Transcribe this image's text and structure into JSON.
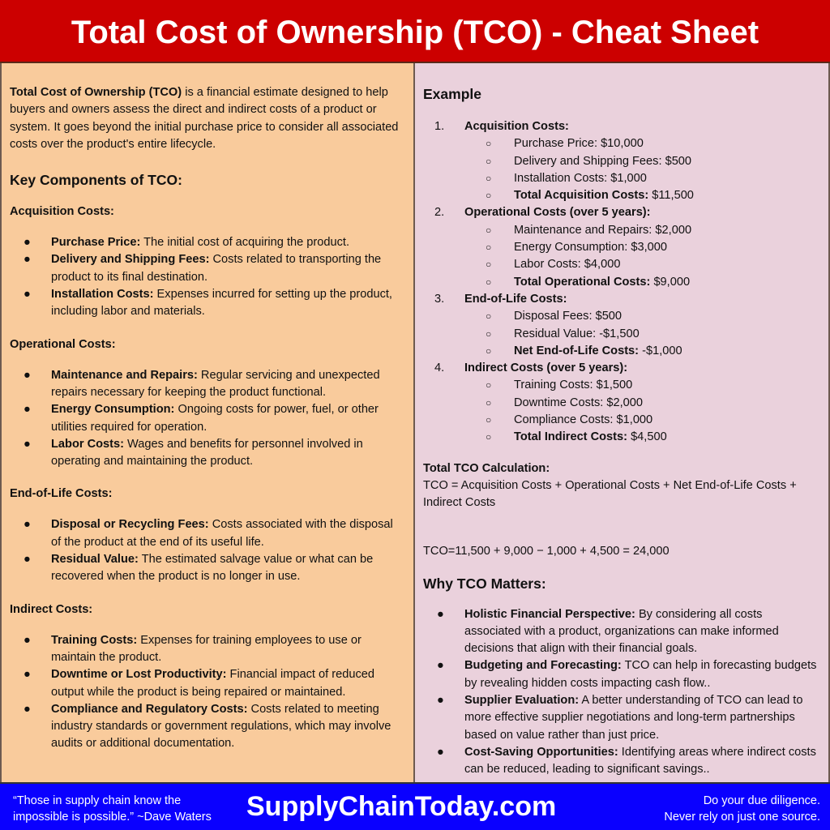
{
  "title": "Total Cost of Ownership (TCO) - Cheat Sheet",
  "left": {
    "intro_bold": "Total Cost of Ownership (TCO)",
    "intro_rest": " is a financial estimate designed to help buyers and owners assess the direct and indirect costs of a product or system. It goes beyond the initial purchase price to consider all associated costs over the product's entire lifecycle.",
    "heading": "Key Components of TCO:",
    "sections": [
      {
        "title": "Acquisition Costs:",
        "items": [
          {
            "term": "Purchase Price:",
            "desc": " The initial cost of acquiring the product."
          },
          {
            "term": "Delivery and Shipping Fees:",
            "desc": " Costs related to transporting the product to its final destination."
          },
          {
            "term": "Installation Costs:",
            "desc": " Expenses incurred for setting up the product, including labor and materials."
          }
        ]
      },
      {
        "title": "Operational Costs:",
        "items": [
          {
            "term": "Maintenance and Repairs:",
            "desc": " Regular servicing and unexpected repairs necessary for keeping the product functional."
          },
          {
            "term": "Energy Consumption:",
            "desc": " Ongoing costs for power, fuel, or other utilities required for operation."
          },
          {
            "term": "Labor Costs:",
            "desc": " Wages and benefits for personnel involved in operating and maintaining the product."
          }
        ]
      },
      {
        "title": "End-of-Life Costs:",
        "items": [
          {
            "term": "Disposal or Recycling Fees:",
            "desc": " Costs associated with the disposal of the product at the end of its useful life."
          },
          {
            "term": "Residual Value:",
            "desc": " The estimated salvage value or what can be recovered when the product is no longer in use."
          }
        ]
      },
      {
        "title": "Indirect Costs:",
        "items": [
          {
            "term": "Training Costs:",
            "desc": " Expenses for training employees to use or maintain the product."
          },
          {
            "term": "Downtime or Lost Productivity:",
            "desc": " Financial impact of reduced output while the product is being repaired or maintained."
          },
          {
            "term": "Compliance and Regulatory Costs:",
            "desc": " Costs related to meeting industry standards or government regulations, which may involve audits or additional documentation."
          }
        ]
      }
    ]
  },
  "right": {
    "example_heading": "Example",
    "example": [
      {
        "num": "1.",
        "title": "Acquisition Costs:",
        "items": [
          {
            "t": "Purchase Price: $10,000"
          },
          {
            "t": "Delivery and Shipping Fees: $500"
          },
          {
            "t": "Installation Costs: $1,000"
          },
          {
            "b": "Total Acquisition Costs:",
            "t": " $11,500"
          }
        ]
      },
      {
        "num": "2.",
        "title": "Operational Costs (over 5 years):",
        "items": [
          {
            "t": "Maintenance and Repairs: $2,000"
          },
          {
            "t": "Energy Consumption: $3,000"
          },
          {
            "t": "Labor Costs: $4,000"
          },
          {
            "b": "Total Operational Costs:",
            "t": " $9,000"
          }
        ]
      },
      {
        "num": "3.",
        "title": "End-of-Life Costs:",
        "items": [
          {
            "t": "Disposal Fees: $500"
          },
          {
            "t": "Residual Value: -$1,500"
          },
          {
            "b": "Net End-of-Life Costs:",
            "t": " -$1,000"
          }
        ]
      },
      {
        "num": "4.",
        "title": "Indirect Costs (over 5 years):",
        "items": [
          {
            "t": "Training Costs: $1,500"
          },
          {
            "t": "Downtime Costs: $2,000"
          },
          {
            "t": "Compliance Costs: $1,000"
          },
          {
            "b": "Total Indirect Costs:",
            "t": " $4,500"
          }
        ]
      }
    ],
    "calc_title": "Total TCO Calculation:",
    "calc_formula": "TCO = Acquisition Costs + Operational Costs + Net End-of-Life Costs + Indirect Costs",
    "calc_result": "TCO=11,500 + 9,000 − 1,000 + 4,500 = 24,000",
    "why_heading": "Why TCO Matters:",
    "why": [
      {
        "term": "Holistic Financial Perspective:",
        "desc": " By considering all costs associated with a product, organizations can make informed decisions that align with their financial goals."
      },
      {
        "term": "Budgeting and Forecasting:",
        "desc": " TCO can help in forecasting budgets by revealing hidden costs impacting cash flow.."
      },
      {
        "term": "Supplier Evaluation:",
        "desc": " A better understanding of TCO can lead to more effective supplier negotiations and long-term partnerships based on value rather than just price."
      },
      {
        "term": "Cost-Saving Opportunities:",
        "desc": " Identifying areas where indirect costs can be reduced, leading to significant savings.."
      }
    ]
  },
  "footer": {
    "quote_line1": "“Those in supply chain know the",
    "quote_line2": "impossible is possible.” ~Dave Waters",
    "site": "SupplyChainToday.com",
    "right_line1": "Do your due diligence.",
    "right_line2": "Never rely on just one source."
  },
  "glyphs": {
    "bullet": "●",
    "circle": "○"
  },
  "colors": {
    "header": "#cc0000",
    "left_bg": "#f9cb9c",
    "right_bg": "#ead1dc",
    "footer": "#0a00ff"
  }
}
